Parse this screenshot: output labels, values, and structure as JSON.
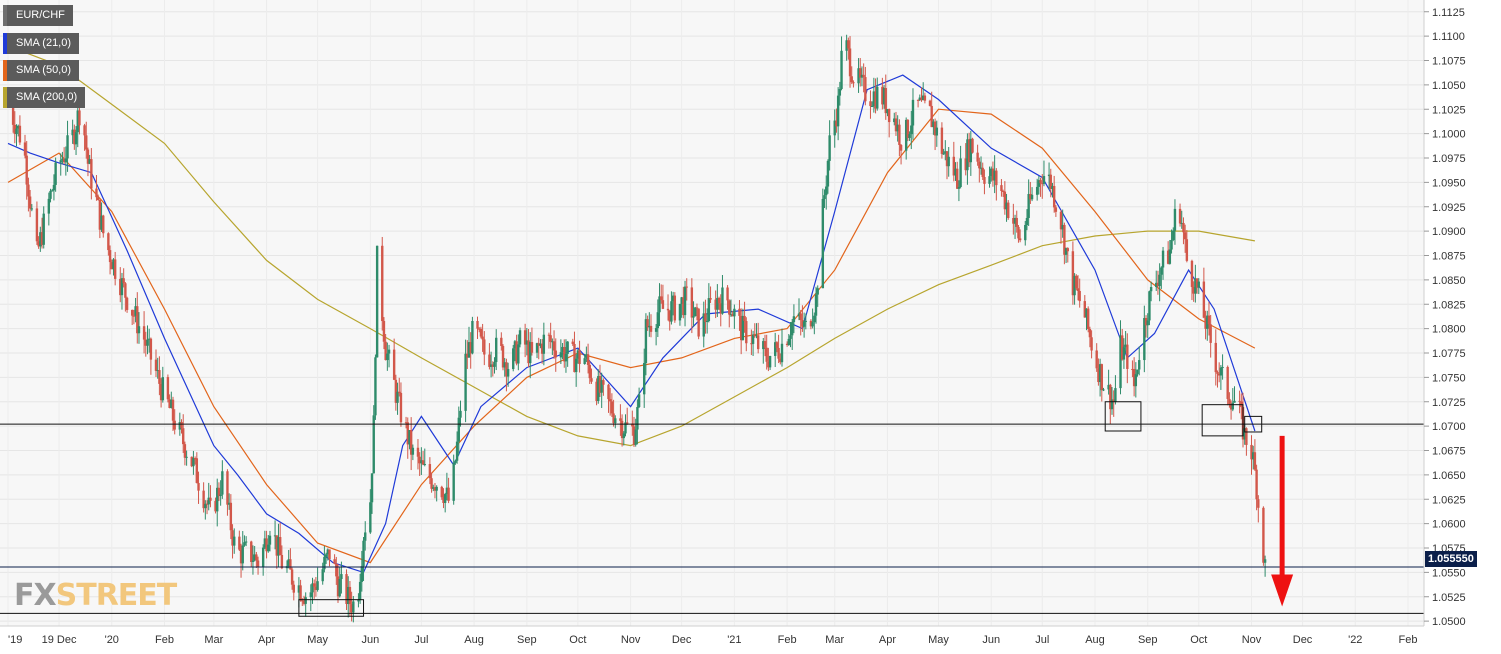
{
  "chart_data": {
    "type": "candlestick",
    "symbol": "EUR/CHF",
    "indicators": [
      {
        "name": "SMA (21,0)",
        "color": "#1f3ad8"
      },
      {
        "name": "SMA (50,0)",
        "color": "#e2651b"
      },
      {
        "name": "SMA (200,0)",
        "color": "#b7a52e"
      }
    ],
    "up_color": "#2e8b6a",
    "down_color": "#d2574a",
    "ylim": [
      1.0495,
      1.1135
    ],
    "y_ticks": [
      "1.1125",
      "1.1100",
      "1.1075",
      "1.1050",
      "1.1025",
      "1.1000",
      "1.0975",
      "1.0950",
      "1.0925",
      "1.0900",
      "1.0875",
      "1.0850",
      "1.0825",
      "1.0800",
      "1.0775",
      "1.0750",
      "1.0725",
      "1.0700",
      "1.0675",
      "1.0650",
      "1.0625",
      "1.0600",
      "1.0575",
      "1.0550",
      "1.0525",
      "1.0500"
    ],
    "x_ticks": [
      "'19",
      "19 Dec",
      "'20",
      "Feb",
      "Mar",
      "Apr",
      "May",
      "Jun",
      "Jul",
      "Aug",
      "Sep",
      "Oct",
      "Nov",
      "Dec",
      "'21",
      "Feb",
      "Mar",
      "Apr",
      "May",
      "Jun",
      "Jul",
      "Aug",
      "Sep",
      "Oct",
      "Nov",
      "Dec",
      "'22",
      "Feb"
    ],
    "last_price": "1.055550",
    "horizontal_levels": [
      1.0702,
      1.0508
    ],
    "price_path": [
      [
        "2019-11-01",
        1.103
      ],
      [
        "2019-11-10",
        1.099
      ],
      [
        "2019-11-18",
        1.0875
      ],
      [
        "2019-11-25",
        1.093
      ],
      [
        "2019-12-01",
        1.097
      ],
      [
        "2019-12-08",
        1.099
      ],
      [
        "2019-12-14",
        1.103
      ],
      [
        "2019-12-18",
        1.097
      ],
      [
        "2019-12-28",
        1.089
      ],
      [
        "2020-01-08",
        1.084
      ],
      [
        "2020-01-20",
        1.079
      ],
      [
        "2020-01-30",
        1.074
      ],
      [
        "2020-02-08",
        1.07
      ],
      [
        "2020-02-18",
        1.066
      ],
      [
        "2020-02-28",
        1.061
      ],
      [
        "2020-03-06",
        1.0645
      ],
      [
        "2020-03-14",
        1.057
      ],
      [
        "2020-03-22",
        1.057
      ],
      [
        "2020-03-28",
        1.056
      ],
      [
        "2020-04-03",
        1.06
      ],
      [
        "2020-04-10",
        1.056
      ],
      [
        "2020-04-18",
        1.054
      ],
      [
        "2020-04-25",
        1.0525
      ],
      [
        "2020-05-02",
        1.0545
      ],
      [
        "2020-05-08",
        1.057
      ],
      [
        "2020-05-13",
        1.054
      ],
      [
        "2020-05-20",
        1.052
      ],
      [
        "2020-05-24",
        1.0515
      ],
      [
        "2020-05-28",
        1.059
      ],
      [
        "2020-06-01",
        1.0625
      ],
      [
        "2020-06-03",
        1.07
      ],
      [
        "2020-06-05",
        1.087
      ],
      [
        "2020-06-10",
        1.078
      ],
      [
        "2020-06-18",
        1.072
      ],
      [
        "2020-06-26",
        1.067
      ],
      [
        "2020-07-04",
        1.065
      ],
      [
        "2020-07-12",
        1.064
      ],
      [
        "2020-07-18",
        1.062
      ],
      [
        "2020-07-22",
        1.068
      ],
      [
        "2020-07-26",
        1.076
      ],
      [
        "2020-08-01",
        1.08
      ],
      [
        "2020-08-08",
        1.077
      ],
      [
        "2020-08-15",
        1.078
      ],
      [
        "2020-08-22",
        1.076
      ],
      [
        "2020-08-29",
        1.079
      ],
      [
        "2020-09-04",
        1.077
      ],
      [
        "2020-09-12",
        1.079
      ],
      [
        "2020-09-20",
        1.078
      ],
      [
        "2020-09-28",
        1.077
      ],
      [
        "2020-10-05",
        1.077
      ],
      [
        "2020-10-12",
        1.074
      ],
      [
        "2020-10-20",
        1.072
      ],
      [
        "2020-10-28",
        1.07
      ],
      [
        "2020-11-03",
        1.0695
      ],
      [
        "2020-11-07",
        1.073
      ],
      [
        "2020-11-10",
        1.08
      ],
      [
        "2020-11-18",
        1.082
      ],
      [
        "2020-11-26",
        1.082
      ],
      [
        "2020-12-04",
        1.083
      ],
      [
        "2020-12-12",
        1.08
      ],
      [
        "2020-12-20",
        1.083
      ],
      [
        "2020-12-28",
        1.083
      ],
      [
        "2021-01-05",
        1.08
      ],
      [
        "2021-01-12",
        1.079
      ],
      [
        "2021-01-20",
        1.077
      ],
      [
        "2021-01-28",
        1.078
      ],
      [
        "2021-02-05",
        1.081
      ],
      [
        "2021-02-12",
        1.08
      ],
      [
        "2021-02-18",
        1.083
      ],
      [
        "2021-02-22",
        1.092
      ],
      [
        "2021-02-26",
        1.099
      ],
      [
        "2021-03-03",
        1.103
      ],
      [
        "2021-03-06",
        1.11
      ],
      [
        "2021-03-12",
        1.106
      ],
      [
        "2021-03-20",
        1.104
      ],
      [
        "2021-03-28",
        1.104
      ],
      [
        "2021-04-04",
        1.102
      ],
      [
        "2021-04-10",
        1.099
      ],
      [
        "2021-04-18",
        1.103
      ],
      [
        "2021-04-26",
        1.102
      ],
      [
        "2021-05-04",
        1.098
      ],
      [
        "2021-05-12",
        1.0955
      ],
      [
        "2021-05-20",
        1.099
      ],
      [
        "2021-05-28",
        1.096
      ],
      [
        "2021-06-05",
        1.095
      ],
      [
        "2021-06-12",
        1.092
      ],
      [
        "2021-06-18",
        1.089
      ],
      [
        "2021-06-24",
        1.093
      ],
      [
        "2021-07-01",
        1.096
      ],
      [
        "2021-07-06",
        1.095
      ],
      [
        "2021-07-12",
        1.091
      ],
      [
        "2021-07-18",
        1.085
      ],
      [
        "2021-07-25",
        1.082
      ],
      [
        "2021-08-01",
        1.077
      ],
      [
        "2021-08-07",
        1.074
      ],
      [
        "2021-08-12",
        1.0725
      ],
      [
        "2021-08-16",
        1.078
      ],
      [
        "2021-08-20",
        1.077
      ],
      [
        "2021-08-24",
        1.074
      ],
      [
        "2021-08-28",
        1.079
      ],
      [
        "2021-09-02",
        1.083
      ],
      [
        "2021-09-08",
        1.086
      ],
      [
        "2021-09-14",
        1.088
      ],
      [
        "2021-09-19",
        1.0935
      ],
      [
        "2021-09-24",
        1.087
      ],
      [
        "2021-09-30",
        1.084
      ],
      [
        "2021-10-06",
        1.08
      ],
      [
        "2021-10-12",
        1.076
      ],
      [
        "2021-10-18",
        1.0735
      ],
      [
        "2021-10-24",
        1.072
      ],
      [
        "2021-10-28",
        1.069
      ],
      [
        "2021-11-01",
        1.0675
      ],
      [
        "2021-11-04",
        1.064
      ],
      [
        "2021-11-06",
        1.06
      ],
      [
        "2021-11-09",
        1.0555
      ]
    ],
    "sma21": [
      [
        "2019-11-01",
        1.099
      ],
      [
        "2019-11-14",
        1.098
      ],
      [
        "2019-12-01",
        1.097
      ],
      [
        "2019-12-20",
        1.096
      ],
      [
        "2020-01-10",
        1.088
      ],
      [
        "2020-02-01",
        1.079
      ],
      [
        "2020-03-01",
        1.068
      ],
      [
        "2020-03-15",
        1.065
      ],
      [
        "2020-04-01",
        1.061
      ],
      [
        "2020-04-20",
        1.059
      ],
      [
        "2020-05-10",
        1.056
      ],
      [
        "2020-05-28",
        1.055
      ],
      [
        "2020-06-10",
        1.06
      ],
      [
        "2020-06-20",
        1.068
      ],
      [
        "2020-07-01",
        1.071
      ],
      [
        "2020-07-20",
        1.066
      ],
      [
        "2020-08-05",
        1.072
      ],
      [
        "2020-09-01",
        1.076
      ],
      [
        "2020-10-01",
        1.078
      ],
      [
        "2020-11-01",
        1.072
      ],
      [
        "2020-11-20",
        1.077
      ],
      [
        "2020-12-15",
        1.0815
      ],
      [
        "2021-01-15",
        1.082
      ],
      [
        "2021-02-10",
        1.08
      ],
      [
        "2021-03-01",
        1.092
      ],
      [
        "2021-03-20",
        1.1045
      ],
      [
        "2021-04-10",
        1.106
      ],
      [
        "2021-05-01",
        1.1035
      ],
      [
        "2021-06-01",
        1.0985
      ],
      [
        "2021-07-01",
        1.0955
      ],
      [
        "2021-08-01",
        1.086
      ],
      [
        "2021-08-20",
        1.077
      ],
      [
        "2021-09-05",
        1.0795
      ],
      [
        "2021-09-25",
        1.086
      ],
      [
        "2021-10-10",
        1.082
      ],
      [
        "2021-11-03",
        1.0695
      ]
    ],
    "sma50": [
      [
        "2019-11-01",
        1.095
      ],
      [
        "2019-12-01",
        1.098
      ],
      [
        "2020-01-01",
        1.092
      ],
      [
        "2020-02-01",
        1.082
      ],
      [
        "2020-03-01",
        1.072
      ],
      [
        "2020-04-01",
        1.064
      ],
      [
        "2020-05-01",
        1.058
      ],
      [
        "2020-06-01",
        1.056
      ],
      [
        "2020-07-01",
        1.064
      ],
      [
        "2020-08-01",
        1.07
      ],
      [
        "2020-09-01",
        1.075
      ],
      [
        "2020-10-01",
        1.0775
      ],
      [
        "2020-11-01",
        1.076
      ],
      [
        "2020-12-01",
        1.077
      ],
      [
        "2021-01-01",
        1.079
      ],
      [
        "2021-02-01",
        1.08
      ],
      [
        "2021-03-01",
        1.086
      ],
      [
        "2021-04-01",
        1.096
      ],
      [
        "2021-05-01",
        1.1025
      ],
      [
        "2021-06-01",
        1.102
      ],
      [
        "2021-07-01",
        1.0985
      ],
      [
        "2021-08-01",
        1.092
      ],
      [
        "2021-09-01",
        1.085
      ],
      [
        "2021-10-01",
        1.081
      ],
      [
        "2021-11-03",
        1.078
      ]
    ],
    "sma200": [
      [
        "2019-11-01",
        1.109
      ],
      [
        "2019-12-01",
        1.107
      ],
      [
        "2020-01-01",
        1.103
      ],
      [
        "2020-02-01",
        1.099
      ],
      [
        "2020-03-01",
        1.093
      ],
      [
        "2020-04-01",
        1.087
      ],
      [
        "2020-05-01",
        1.083
      ],
      [
        "2020-06-01",
        1.08
      ],
      [
        "2020-07-01",
        1.077
      ],
      [
        "2020-08-01",
        1.074
      ],
      [
        "2020-09-01",
        1.071
      ],
      [
        "2020-10-01",
        1.069
      ],
      [
        "2020-11-01",
        1.068
      ],
      [
        "2020-12-01",
        1.07
      ],
      [
        "2021-01-01",
        1.073
      ],
      [
        "2021-02-01",
        1.076
      ],
      [
        "2021-03-01",
        1.079
      ],
      [
        "2021-04-01",
        1.082
      ],
      [
        "2021-05-01",
        1.0845
      ],
      [
        "2021-06-01",
        1.0865
      ],
      [
        "2021-07-01",
        1.0885
      ],
      [
        "2021-08-01",
        1.0895
      ],
      [
        "2021-09-01",
        1.09
      ],
      [
        "2021-10-01",
        1.09
      ],
      [
        "2021-11-03",
        1.089
      ]
    ],
    "annotation_boxes": [
      {
        "from": "2020-04-20",
        "to": "2020-05-28",
        "low": 1.0505,
        "high": 1.0522
      },
      {
        "from": "2021-08-07",
        "to": "2021-08-28",
        "low": 1.0695,
        "high": 1.0725
      },
      {
        "from": "2021-10-03",
        "to": "2021-10-27",
        "low": 1.069,
        "high": 1.0722
      },
      {
        "from": "2021-10-28",
        "to": "2021-11-07",
        "low": 1.0694,
        "high": 1.071
      }
    ],
    "arrow": {
      "date": "2021-11-19",
      "from": 1.069,
      "to": 1.0515,
      "color": "#ee1111"
    }
  },
  "legend": {
    "symbol_label": "EUR/CHF",
    "sma21_label": "SMA (21,0)",
    "sma50_label": "SMA (50,0)",
    "sma200_label": "SMA (200,0)"
  },
  "price_tag": "1.055550",
  "watermark": {
    "fx": "FX",
    "street": "STREET"
  }
}
